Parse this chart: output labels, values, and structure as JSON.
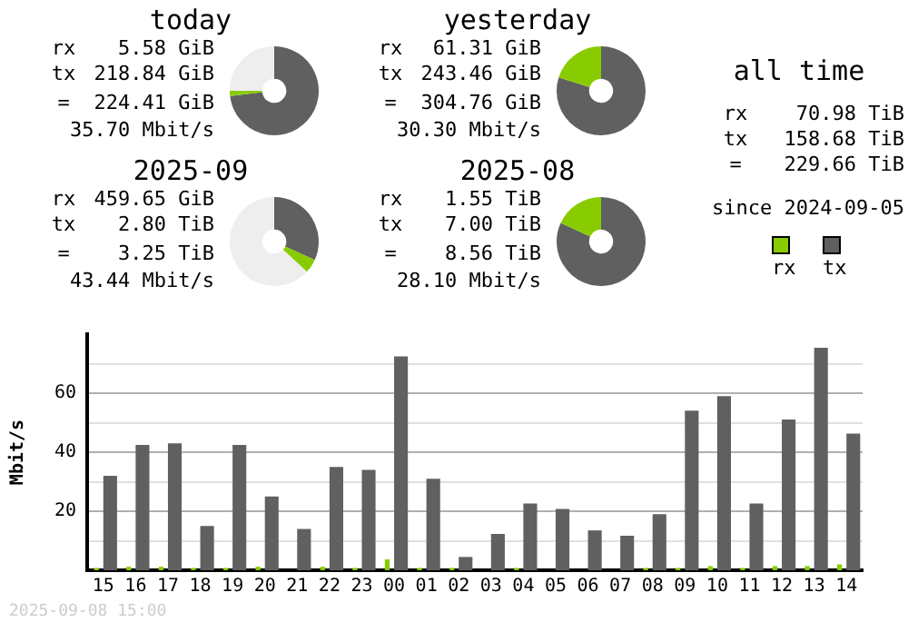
{
  "chart_data": [
    {
      "type": "donut",
      "title": "today",
      "categories": [
        null,
        null,
        null
      ],
      "values": [
        73.1,
        1.9,
        25.0
      ],
      "colors": [
        "#606060",
        "#88cc00",
        "#eeeeee"
      ],
      "annotations": [
        "rx",
        "5.58 GiB",
        "tx",
        "218.84 GiB",
        "=",
        "224.41 GiB",
        "35.70 Mbit/s"
      ]
    },
    {
      "type": "donut",
      "title": "yesterday",
      "categories": [
        null,
        null
      ],
      "values": [
        79.9,
        20.1
      ],
      "colors": [
        "#606060",
        "#88cc00"
      ],
      "annotations": [
        "rx",
        "61.31 GiB",
        "tx",
        "243.46 GiB",
        "=",
        "304.76 GiB",
        "30.30 Mbit/s"
      ]
    },
    {
      "type": "other",
      "title": "all time",
      "annotations": [
        "rx",
        "70.98 TiB",
        "tx",
        "158.68 TiB",
        "=",
        "229.66 TiB",
        "since 2024-09-05"
      ]
    },
    {
      "type": "donut",
      "title": "2025-09",
      "categories": [
        null,
        null,
        null
      ],
      "values": [
        31.8,
        5.1,
        63.1
      ],
      "colors": [
        "#606060",
        "#88cc00",
        "#eeeeee"
      ],
      "annotations": [
        "rx",
        "459.65 GiB",
        "tx",
        "2.80 TiB",
        "=",
        "3.25 TiB",
        "43.44 Mbit/s"
      ]
    },
    {
      "type": "donut",
      "title": "2025-08",
      "categories": [
        null,
        null
      ],
      "values": [
        81.9,
        18.1
      ],
      "colors": [
        "#606060",
        "#88cc00"
      ],
      "annotations": [
        "rx",
        "1.55 TiB",
        "tx",
        "7.00 TiB",
        "=",
        "8.56 TiB",
        "28.10 Mbit/s"
      ]
    },
    {
      "type": "bar",
      "ylabel": "Mbit/s",
      "categories": [
        "15",
        "16",
        "17",
        "18",
        "19",
        "20",
        "21",
        "22",
        "23",
        "00",
        "01",
        "02",
        "03",
        "04",
        "05",
        "06",
        "07",
        "08",
        "09",
        "10",
        "11",
        "12",
        "13",
        "14"
      ],
      "series": [
        {
          "name": "rx",
          "color": "#88cc00",
          "values": [
            0.8,
            1.2,
            1.2,
            0.8,
            0.8,
            1.2,
            null,
            1.2,
            0.8,
            3.7,
            0.8,
            0.8,
            null,
            0.8,
            null,
            null,
            null,
            0.8,
            0.8,
            1.4,
            0.8,
            1.4,
            1.4,
            2.0
          ]
        },
        {
          "name": "tx",
          "color": "#606060",
          "values": [
            32,
            42.5,
            43,
            15,
            42.5,
            25,
            14,
            35,
            34,
            72.5,
            31,
            4.5,
            12.3,
            22.6,
            20.8,
            13.5,
            11.7,
            19,
            54.1,
            59,
            22.6,
            51.1,
            75.4,
            46.3
          ]
        }
      ],
      "ylim": [
        0,
        80
      ],
      "yticks": [
        {
          "value": 10,
          "label": null
        },
        20,
        {
          "value": 30,
          "label": null
        },
        40,
        {
          "value": 50,
          "label": null
        },
        60,
        {
          "value": 70,
          "label": null
        }
      ],
      "grid": "y",
      "legend": "top right",
      "annotations": [
        "2025-09-08 15:00"
      ]
    }
  ]
}
